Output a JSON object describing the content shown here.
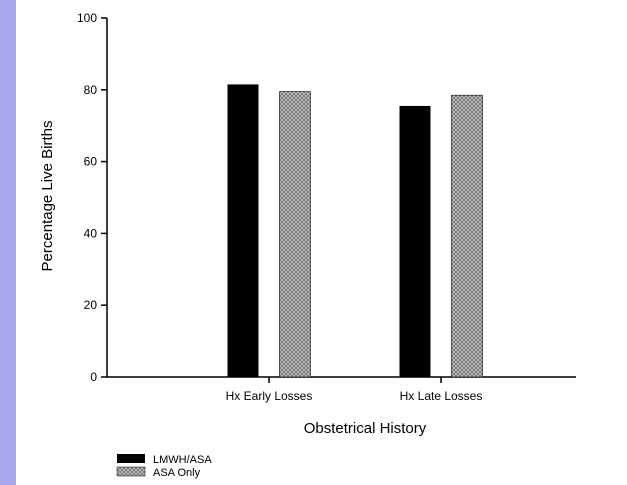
{
  "colors": {
    "side_strip": "#a7a7f0",
    "series_lmwh": "#000000",
    "series_asa": "#9a9a9a"
  },
  "chart_data": {
    "type": "bar",
    "title": "",
    "xlabel": "Obstetrical History",
    "ylabel": "Percentage Live Births",
    "categories": [
      "Hx Early Losses",
      "Hx Late Losses"
    ],
    "series": [
      {
        "name": "LMWH/ASA",
        "values": [
          81.5,
          75.5
        ],
        "pattern": "solid"
      },
      {
        "name": "ASA Only",
        "values": [
          79.5,
          78.5
        ],
        "pattern": "crosshatch"
      }
    ],
    "ylim": [
      0,
      100
    ],
    "yticks": [
      0,
      20,
      40,
      60,
      80,
      100
    ],
    "grid": false,
    "legend_position": "bottom-left"
  }
}
